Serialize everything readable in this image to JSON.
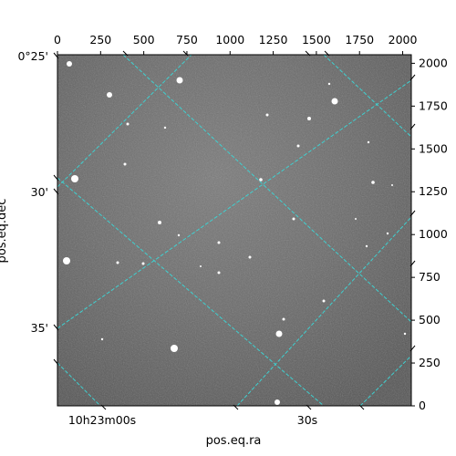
{
  "figure": {
    "xlabel": "pos.eq.ra",
    "ylabel": "pos.eq.dec",
    "pixel_axis_bottom_ticks": [],
    "pixel_axis_top_ticks": [
      "0",
      "250",
      "500",
      "750",
      "1000",
      "1250",
      "1500",
      "1750",
      "2000"
    ],
    "pixel_axis_right_ticks": [
      "0",
      "250",
      "500",
      "750",
      "1000",
      "1250",
      "1500",
      "1750",
      "2000"
    ],
    "dec_ticks": [
      "0°25'",
      "30'",
      "35'"
    ],
    "ra_ticks": [
      "10h23m00s",
      "30s"
    ],
    "pixel_range": [
      0,
      2050
    ],
    "grid_color": "#3fd0d0",
    "frame_color": "#000000"
  }
}
